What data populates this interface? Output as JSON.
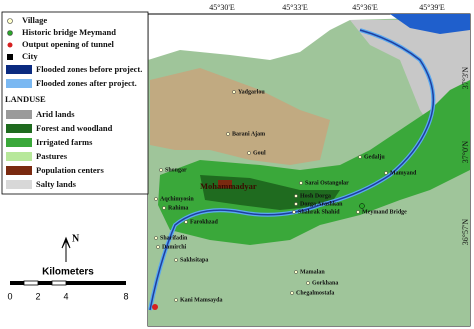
{
  "legend": {
    "items": [
      "Village",
      "Historic bridge Meymand",
      "Output opening of tunnel",
      "City",
      "Flooded zones before project.",
      "Flooded zones after project."
    ]
  },
  "landuse": {
    "title": "LANDUSE",
    "items": [
      "Arid lands",
      "Forest and woodland",
      "Irrigated farms",
      "Pastures",
      "Population centers",
      "Salty lands"
    ]
  },
  "map": {
    "lon_labels": [
      "45°30'E",
      "45°33'E",
      "45°36'E",
      "45°39'E"
    ],
    "lat_labels": [
      "37°3'N",
      "37°0'N",
      "36°57'N"
    ],
    "places": [
      "Yadgarlou",
      "Barani Ajam",
      "Goul",
      "Shongar",
      "Mohammadyar",
      "Aqchimyosin",
      "Rahima",
      "Sarai Ostangolar",
      "Hosh Dorga",
      "Dorga Arashkan",
      "Shahrak Shahid",
      "Gedalju",
      "Mamyand",
      "Meymand Bridge",
      "Farokhzad",
      "Sharifadin",
      "Damirchi",
      "Sakhsitapa",
      "Mamalan",
      "Gorkhana",
      "Chegalmostafa",
      "Kani Mamsayda"
    ]
  },
  "north": "N",
  "scale": {
    "title": "Kilometers",
    "labels": [
      "0",
      "2",
      "4",
      "8"
    ]
  }
}
